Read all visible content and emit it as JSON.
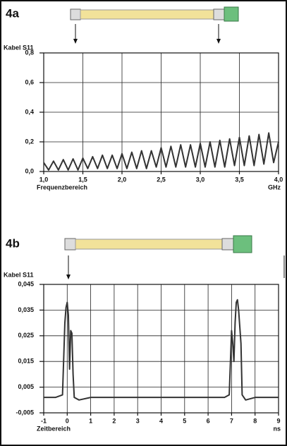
{
  "chart_data": [
    {
      "type": "line",
      "panel_label": "4a",
      "y_label": "Kabel S11",
      "x_label": "Frequenzbereich",
      "x_unit": "GHz",
      "grid": true,
      "x": [
        1.0,
        1.0625,
        1.125,
        1.1875,
        1.25,
        1.3125,
        1.375,
        1.4375,
        1.5,
        1.5625,
        1.625,
        1.6875,
        1.75,
        1.8125,
        1.875,
        1.9375,
        2.0,
        2.0625,
        2.125,
        2.1875,
        2.25,
        2.3125,
        2.375,
        2.4375,
        2.5,
        2.5625,
        2.625,
        2.6875,
        2.75,
        2.8125,
        2.875,
        2.9375,
        3.0,
        3.0625,
        3.125,
        3.1875,
        3.25,
        3.3125,
        3.375,
        3.4375,
        3.5,
        3.5625,
        3.625,
        3.6875,
        3.75,
        3.8125,
        3.875,
        3.9375,
        4.0
      ],
      "series": [
        {
          "color": "#333333",
          "values": [
            0.06,
            0.01,
            0.07,
            0.01,
            0.08,
            0.01,
            0.085,
            0.01,
            0.09,
            0.02,
            0.1,
            0.02,
            0.11,
            0.02,
            0.11,
            0.02,
            0.12,
            0.02,
            0.13,
            0.02,
            0.14,
            0.02,
            0.14,
            0.03,
            0.16,
            0.03,
            0.17,
            0.03,
            0.18,
            0.03,
            0.18,
            0.03,
            0.19,
            0.03,
            0.2,
            0.03,
            0.21,
            0.03,
            0.22,
            0.04,
            0.23,
            0.04,
            0.24,
            0.04,
            0.25,
            0.05,
            0.26,
            0.06,
            0.2
          ]
        }
      ],
      "xlim": [
        1.0,
        4.0
      ],
      "xticks": [
        {
          "value": 1.0,
          "label": "1,0"
        },
        {
          "value": 1.5,
          "label": "1,5"
        },
        {
          "value": 2.0,
          "label": "2,0"
        },
        {
          "value": 2.5,
          "label": "2,5"
        },
        {
          "value": 3.0,
          "label": "3,0"
        },
        {
          "value": 3.5,
          "label": "3,5"
        },
        {
          "value": 4.0,
          "label": "4,0"
        }
      ],
      "ylim": [
        0,
        0.8
      ],
      "yticks": [
        {
          "value": 0,
          "label": "0,0"
        },
        {
          "value": 0.2,
          "label": "0,2"
        },
        {
          "value": 0.4,
          "label": "0,4"
        },
        {
          "value": 0.6,
          "label": "0,6"
        },
        {
          "value": 0.8,
          "label": "0,8"
        }
      ]
    },
    {
      "type": "line",
      "panel_label": "4b",
      "y_label": "Kabel S11",
      "x_label": "Zeitbereich",
      "x_unit": "ns",
      "grid": true,
      "x": [
        -1,
        -0.5,
        -0.2,
        -0.1,
        -0.05,
        0,
        0.05,
        0.1,
        0.15,
        0.2,
        0.25,
        0.3,
        0.5,
        1,
        3,
        5,
        6.7,
        6.9,
        7.0,
        7.05,
        7.1,
        7.15,
        7.2,
        7.25,
        7.3,
        7.4,
        7.45,
        7.6,
        8,
        9
      ],
      "series": [
        {
          "color": "#333333",
          "values": [
            0.001,
            0.001,
            0.002,
            0.03,
            0.036,
            0.038,
            0.033,
            0.012,
            0.027,
            0.026,
            0.01,
            0.001,
            0.0,
            0.001,
            0.001,
            0.001,
            0.001,
            0.002,
            0.027,
            0.022,
            0.015,
            0.03,
            0.038,
            0.039,
            0.035,
            0.022,
            0.002,
            0.0,
            0.001,
            0.001
          ]
        }
      ],
      "xlim": [
        -1,
        9
      ],
      "xticks": [
        -1,
        0,
        1,
        2,
        3,
        4,
        5,
        6,
        7,
        8,
        9
      ],
      "ylim": [
        -0.005,
        0.045
      ],
      "yticks": [
        {
          "value": -0.005,
          "label": "-0,005"
        },
        {
          "value": 0.005,
          "label": "0,005"
        },
        {
          "value": 0.015,
          "label": "0,015"
        },
        {
          "value": 0.025,
          "label": "0,025"
        },
        {
          "value": 0.035,
          "label": "0,035"
        },
        {
          "value": 0.045,
          "label": "0,045"
        }
      ]
    }
  ]
}
